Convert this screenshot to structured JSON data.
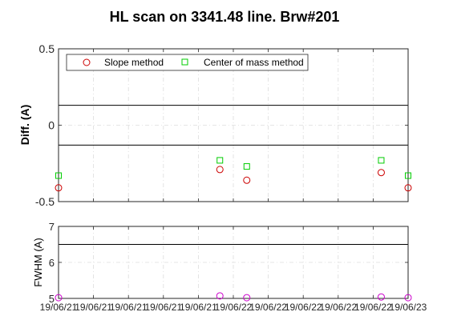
{
  "figure": {
    "title": "HL scan on 3341.48 line. Brw#201"
  },
  "chart_data": [
    {
      "type": "scatter",
      "ylabel": "Diff.  (A)",
      "ylim": [
        -0.5,
        0.5
      ],
      "yticks": [
        "0.5",
        "0",
        "-0.5"
      ],
      "ytick_values": [
        0.5,
        0,
        -0.5
      ],
      "x": [
        0,
        12,
        14,
        24,
        26
      ],
      "grid": true,
      "legend_position": "top-left",
      "reference_lines": [
        0.13,
        -0.13
      ],
      "series": [
        {
          "name": "Slope method",
          "marker": "circle",
          "color": "#cc0000",
          "values": [
            -0.41,
            -0.29,
            -0.36,
            -0.31,
            -0.41
          ]
        },
        {
          "name": "Center of mass method",
          "marker": "square",
          "color": "#00cc00",
          "values": [
            -0.33,
            -0.23,
            -0.27,
            -0.23,
            -0.33
          ]
        }
      ]
    },
    {
      "type": "scatter",
      "ylabel": "FWHM (A)",
      "ylim": [
        5,
        7
      ],
      "yticks": [
        "7",
        "6",
        "5"
      ],
      "ytick_values": [
        7,
        6,
        5
      ],
      "x": [
        0,
        12,
        14,
        24,
        26
      ],
      "grid": true,
      "reference_lines": [
        6.5
      ],
      "xticks": [
        "19/06/21",
        "19/06/21",
        "19/06/21",
        "19/06/21",
        "19/06/21",
        "19/06/22",
        "19/06/22",
        "19/06/22",
        "19/06/22",
        "19/06/22",
        "19/06/23"
      ],
      "series": [
        {
          "marker": "circle",
          "color": "#cc00cc",
          "values": [
            5.02,
            5.07,
            5.02,
            5.04,
            5.02
          ]
        }
      ]
    }
  ]
}
